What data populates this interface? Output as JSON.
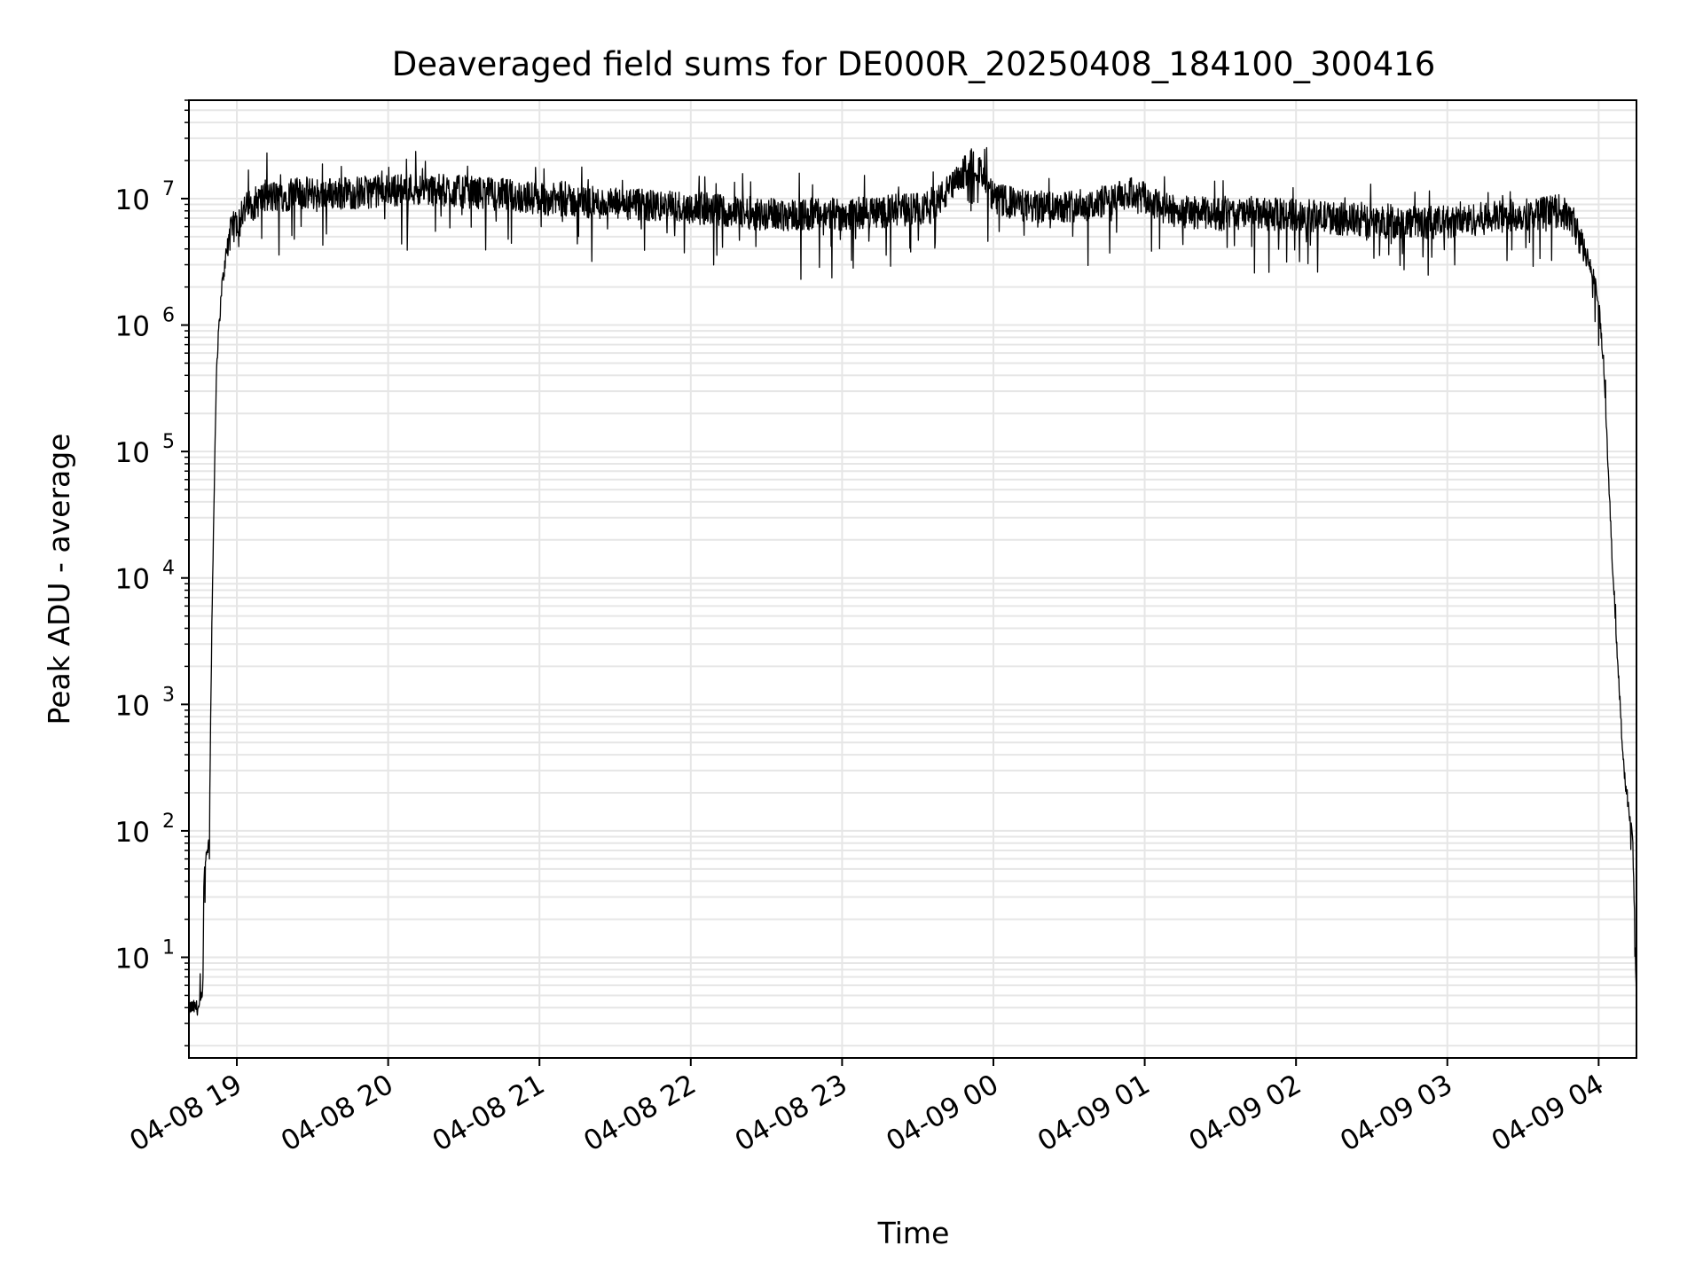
{
  "chart_data": {
    "type": "line",
    "title": "Deaveraged field sums for DE000R_20250408_184100_300416",
    "xlabel": "Time",
    "ylabel": "Peak ADU - average",
    "x_is_time": true,
    "xlim": [
      "2025-04-08 18:41:00",
      "2025-04-09 04:15:00"
    ],
    "ylim": [
      1.6,
      60000000
    ],
    "yscale": "log",
    "grid": {
      "major": true,
      "minor_y": true,
      "color": "#e6e6e6"
    },
    "x_ticks": [
      {
        "value": "2025-04-08 19:00:00",
        "label": "04-08 19"
      },
      {
        "value": "2025-04-08 20:00:00",
        "label": "04-08 20"
      },
      {
        "value": "2025-04-08 21:00:00",
        "label": "04-08 21"
      },
      {
        "value": "2025-04-08 22:00:00",
        "label": "04-08 22"
      },
      {
        "value": "2025-04-08 23:00:00",
        "label": "04-08 23"
      },
      {
        "value": "2025-04-09 00:00:00",
        "label": "04-09 00"
      },
      {
        "value": "2025-04-09 01:00:00",
        "label": "04-09 01"
      },
      {
        "value": "2025-04-09 02:00:00",
        "label": "04-09 02"
      },
      {
        "value": "2025-04-09 03:00:00",
        "label": "04-09 03"
      },
      {
        "value": "2025-04-09 04:00:00",
        "label": "04-09 04"
      }
    ],
    "y_ticks": [
      {
        "value": 10,
        "base": "10",
        "exp": "1"
      },
      {
        "value": 100,
        "base": "10",
        "exp": "2"
      },
      {
        "value": 1000,
        "base": "10",
        "exp": "3"
      },
      {
        "value": 10000,
        "base": "10",
        "exp": "4"
      },
      {
        "value": 100000,
        "base": "10",
        "exp": "5"
      },
      {
        "value": 1000000,
        "base": "10",
        "exp": "6"
      },
      {
        "value": 10000000,
        "base": "10",
        "exp": "7"
      }
    ],
    "series": [
      {
        "color": "#000000",
        "noise": "high-frequency scatter of roughly a factor of 2 around the envelope",
        "envelope": {
          "x": [
            "2025-04-08 18:41:00",
            "2025-04-08 18:45:00",
            "2025-04-08 18:46:30",
            "2025-04-08 18:47:00",
            "2025-04-08 18:48:00",
            "2025-04-08 18:49:00",
            "2025-04-08 18:50:00",
            "2025-04-08 18:51:00",
            "2025-04-08 18:52:00",
            "2025-04-08 18:54:00",
            "2025-04-08 18:57:00",
            "2025-04-08 19:02:00",
            "2025-04-08 19:10:00",
            "2025-04-08 19:25:00",
            "2025-04-08 19:45:00",
            "2025-04-08 20:10:00",
            "2025-04-08 20:40:00",
            "2025-04-08 21:00:00",
            "2025-04-08 21:30:00",
            "2025-04-08 22:00:00",
            "2025-04-08 22:30:00",
            "2025-04-08 23:00:00",
            "2025-04-08 23:20:00",
            "2025-04-08 23:35:00",
            "2025-04-08 23:45:00",
            "2025-04-08 23:52:00",
            "2025-04-09 00:00:00",
            "2025-04-09 00:15:00",
            "2025-04-09 00:40:00",
            "2025-04-09 00:55:00",
            "2025-04-09 01:10:00",
            "2025-04-09 01:30:00",
            "2025-04-09 02:00:00",
            "2025-04-09 02:30:00",
            "2025-04-09 03:00:00",
            "2025-04-09 03:30:00",
            "2025-04-09 03:45:00",
            "2025-04-09 03:50:00",
            "2025-04-09 03:55:00",
            "2025-04-09 03:58:00",
            "2025-04-09 04:00:00",
            "2025-04-09 04:02:00",
            "2025-04-09 04:05:00",
            "2025-04-09 04:08:00",
            "2025-04-09 04:10:00",
            "2025-04-09 04:12:00",
            "2025-04-09 04:13:30",
            "2025-04-09 04:15:00"
          ],
          "y": [
            4,
            4,
            5,
            40,
            70,
            80,
            3000,
            50000,
            500000,
            2000000,
            5000000,
            8000000,
            10000000,
            11000000,
            11000000,
            12000000,
            11000000,
            10000000,
            9000000,
            8500000,
            7500000,
            7500000,
            8000000,
            8500000,
            13000000,
            20000000,
            10000000,
            8500000,
            9000000,
            11000000,
            8000000,
            7500000,
            7500000,
            6500000,
            6500000,
            7500000,
            8000000,
            6500000,
            3500000,
            2500000,
            1500000,
            500000,
            20000,
            1500,
            300,
            150,
            90,
            4
          ]
        }
      }
    ]
  }
}
